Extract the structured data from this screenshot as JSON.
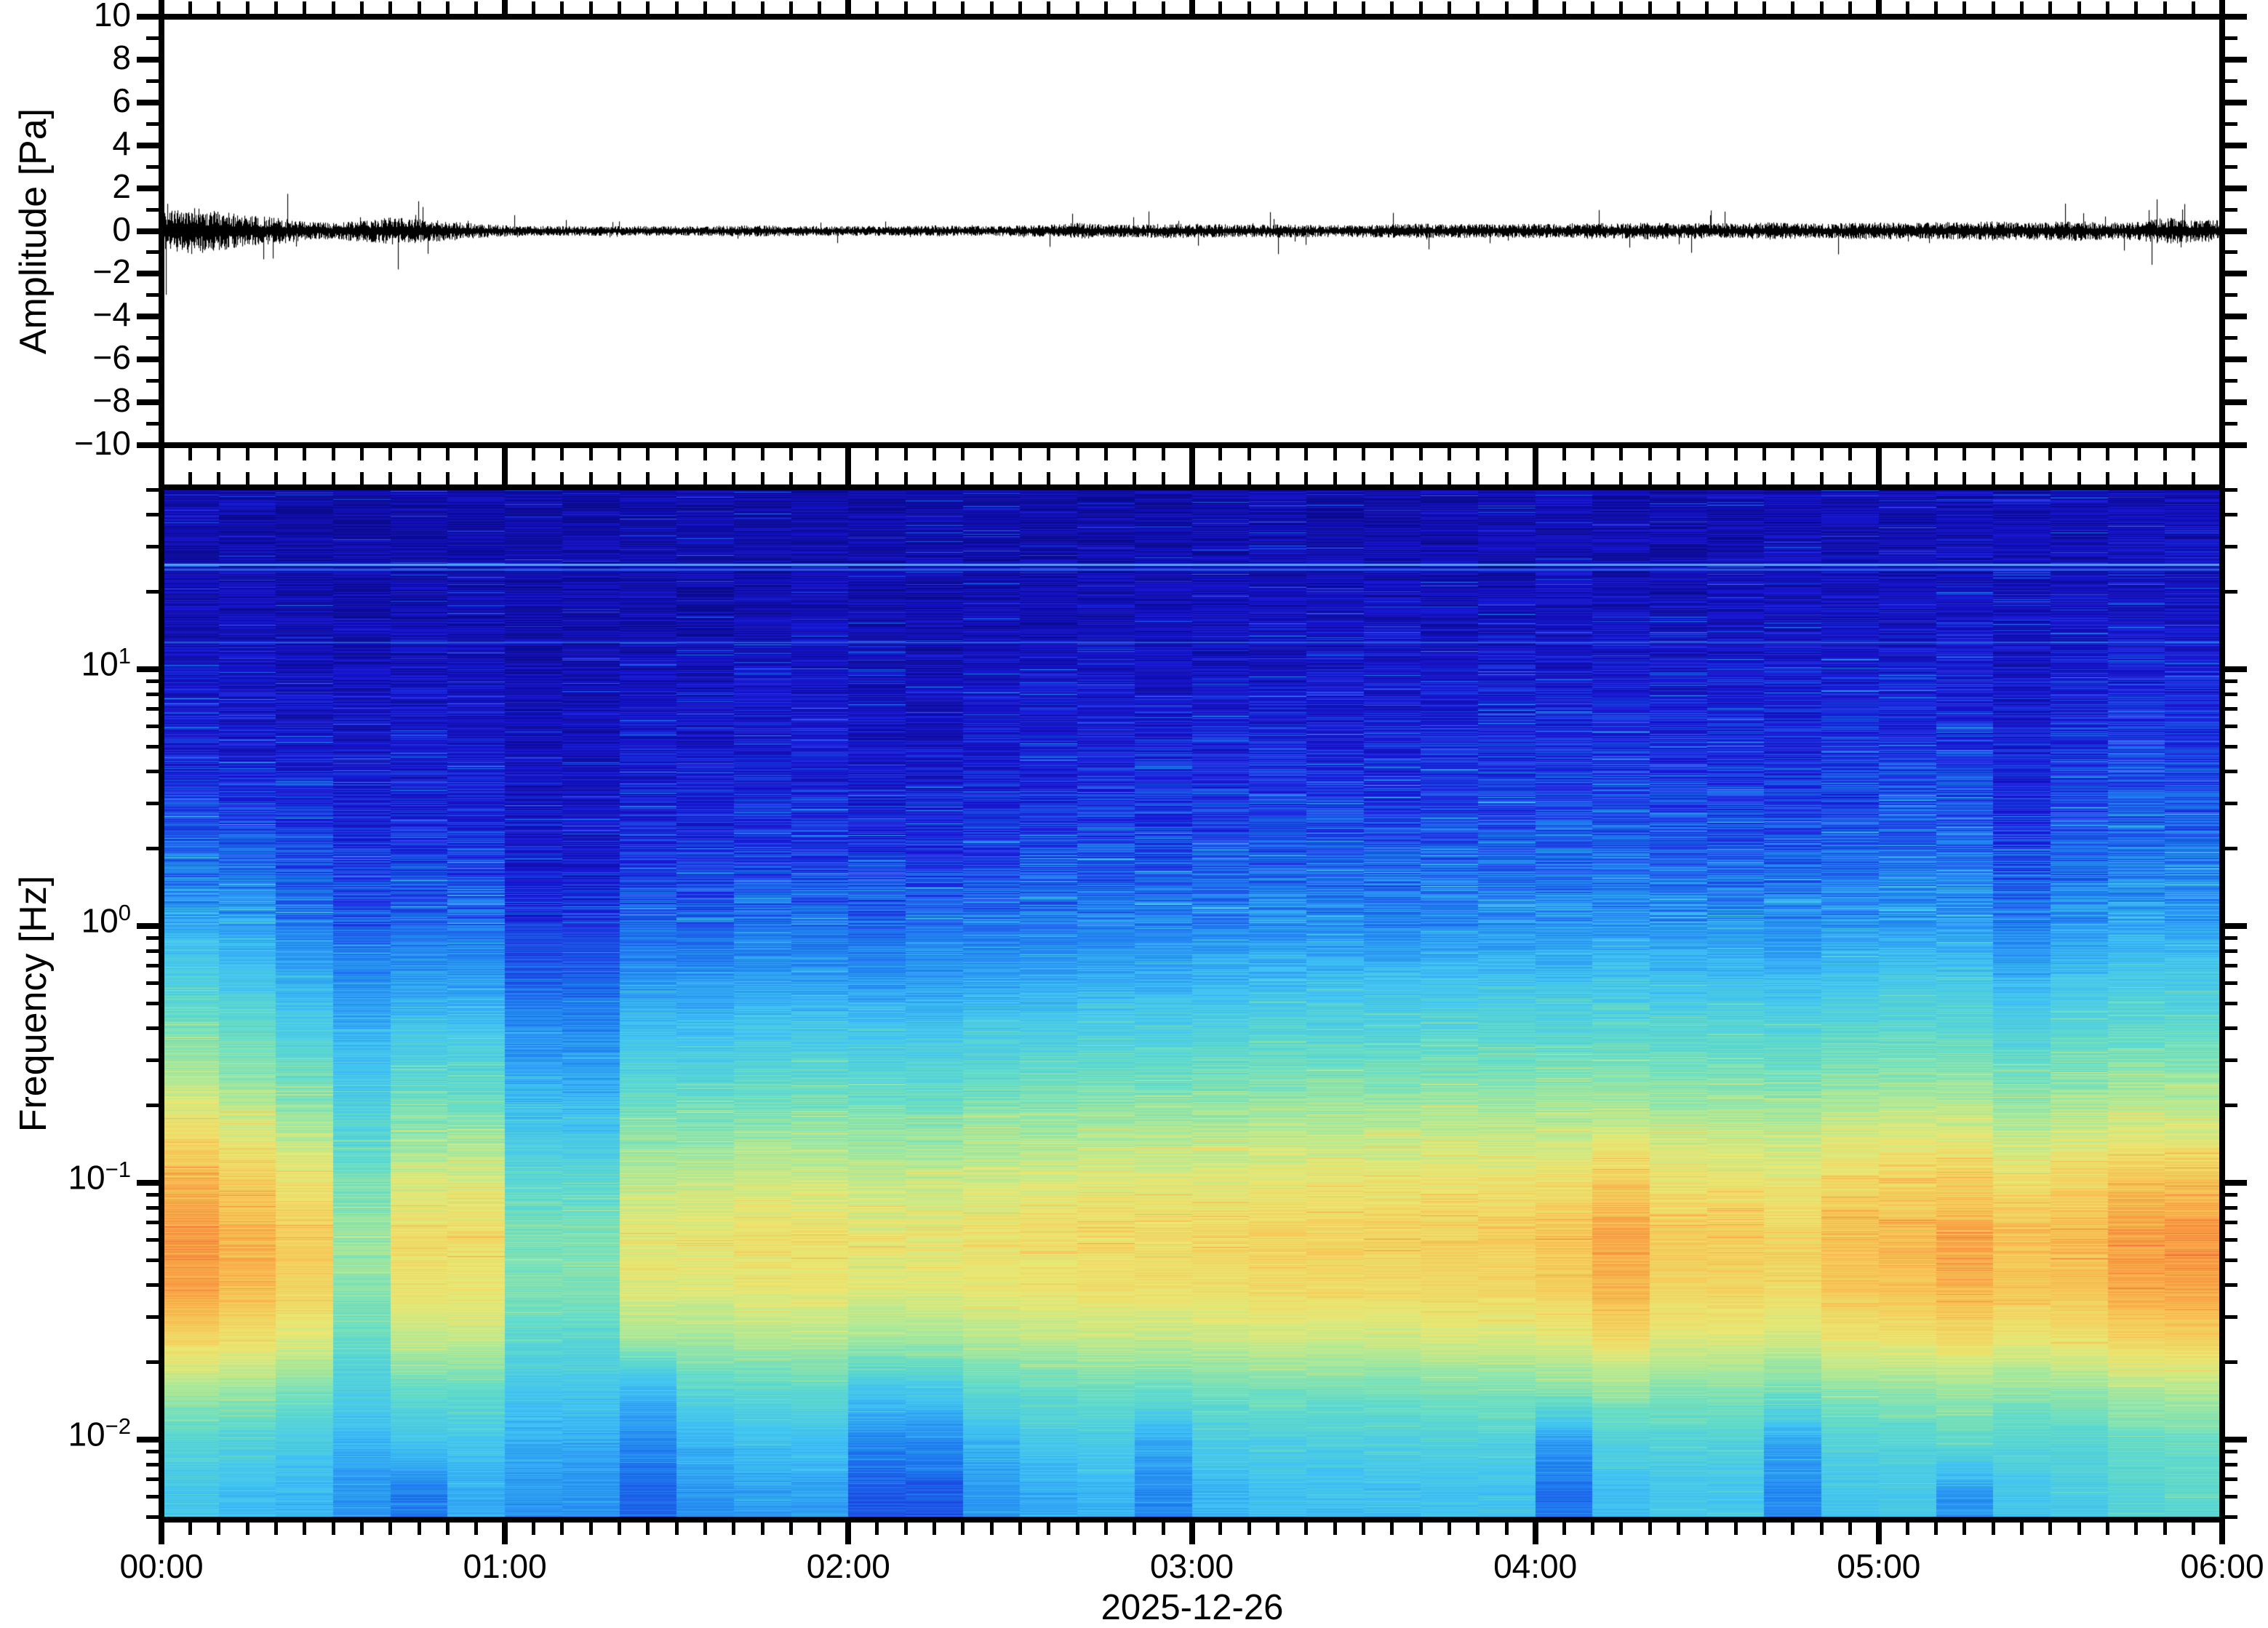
{
  "figure": {
    "background": "#ffffff",
    "axis_color": "#000000",
    "date_label": "2025-12-26"
  },
  "chart_data": [
    {
      "type": "line",
      "name": "pressure-waveform",
      "title": "",
      "ylabel": "Amplitude [Pa]",
      "ylim": [
        -10,
        10
      ],
      "ytick_values": [
        10,
        8,
        6,
        4,
        2,
        0,
        -2,
        -4,
        -6,
        -8,
        -10
      ],
      "ytick_labels": [
        "10",
        "8",
        "6",
        "4",
        "2",
        "0",
        "−2",
        "−4",
        "−6",
        "−8",
        "−10"
      ],
      "ytick_minor_step": 1,
      "x_range": [
        "00:00",
        "06:00"
      ],
      "x_total_minutes": 360,
      "x_minor_tick_minutes": 5,
      "x_major_tick_minutes": 60,
      "line_color": "#000000",
      "description": "near-zero atmospheric pressure trace, strongest noise bursts 00:00-00:55, slightly elevated after 04:30",
      "envelope_pa_5min": [
        0.3,
        0.38,
        0.32,
        0.25,
        0.22,
        0.15,
        0.13,
        0.18,
        0.22,
        0.19,
        0.16,
        0.12,
        0.09,
        0.08,
        0.08,
        0.08,
        0.08,
        0.08,
        0.08,
        0.08,
        0.09,
        0.09,
        0.08,
        0.08,
        0.08,
        0.08,
        0.08,
        0.09,
        0.08,
        0.08,
        0.09,
        0.1,
        0.13,
        0.11,
        0.1,
        0.12,
        0.12,
        0.11,
        0.1,
        0.11,
        0.1,
        0.1,
        0.1,
        0.11,
        0.12,
        0.11,
        0.12,
        0.11,
        0.12,
        0.11,
        0.13,
        0.12,
        0.14,
        0.12,
        0.13,
        0.12,
        0.14,
        0.13,
        0.12,
        0.13,
        0.14,
        0.13,
        0.15,
        0.14,
        0.16,
        0.14,
        0.15,
        0.16,
        0.14,
        0.15,
        0.22,
        0.18
      ],
      "seed": 20251226
    },
    {
      "type": "heatmap",
      "name": "infrasound-spectrogram",
      "ylabel": "Frequency [Hz]",
      "xlabel": "2025-12-26",
      "xtick_labels": [
        "00:00",
        "01:00",
        "02:00",
        "03:00",
        "04:00",
        "05:00",
        "06:00"
      ],
      "xtick_hours": [
        0,
        1,
        2,
        3,
        4,
        5,
        6
      ],
      "ytick_decades": [
        1,
        0,
        -1,
        -2
      ],
      "ytick_exponent_labels": [
        "1",
        "0",
        "−1",
        "−2"
      ],
      "ytick_base": "10",
      "freq_limits_hz": [
        0.0049,
        51.1
      ],
      "row_log10_top": 1.708,
      "row_log10_bottom": -2.312,
      "time_total_minutes": 360,
      "column_minutes": 10,
      "legend": "none",
      "grid": "off",
      "spectral_lines": [
        {
          "hz": 25.5,
          "color": "#4fb0f5",
          "alpha": 0.95,
          "px": 3
        },
        {
          "hz": 24.4,
          "color": "#2e62e8",
          "alpha": 0.9,
          "px": 3
        },
        {
          "hz": 12.7,
          "color": "#2e7bea",
          "alpha": 0.75,
          "px": 2
        }
      ],
      "colormap_stops": [
        [
          0.0,
          "#0a0a8e"
        ],
        [
          0.13,
          "#1a17d8"
        ],
        [
          0.28,
          "#1f7ef0"
        ],
        [
          0.4,
          "#3fc2f4"
        ],
        [
          0.52,
          "#63dcc8"
        ],
        [
          0.62,
          "#a6e89c"
        ],
        [
          0.72,
          "#eae873"
        ],
        [
          0.82,
          "#f7c656"
        ],
        [
          0.91,
          "#f79540"
        ],
        [
          1.0,
          "#ef5f3c"
        ]
      ],
      "noise_texture": {
        "amp_high_freq": 7.5,
        "amp_mid_freq": 4.5,
        "amp_low_freq": 3.2,
        "streak_prob": 0.05
      },
      "seed": 777,
      "values_pct": [
        [
          4,
          4,
          3,
          3,
          4,
          4,
          3,
          3,
          4,
          4,
          4,
          4,
          4,
          4,
          4,
          4,
          4,
          4,
          4,
          5,
          5,
          5,
          5,
          5,
          6,
          6,
          5,
          5,
          6,
          6,
          6,
          7,
          6,
          6,
          7,
          7
        ],
        [
          5,
          5,
          4,
          4,
          5,
          5,
          4,
          4,
          5,
          5,
          5,
          5,
          5,
          5,
          5,
          5,
          5,
          5,
          6,
          6,
          6,
          6,
          6,
          6,
          7,
          7,
          6,
          6,
          7,
          7,
          7,
          8,
          7,
          7,
          8,
          8
        ],
        [
          7,
          7,
          6,
          5,
          6,
          6,
          5,
          5,
          6,
          6,
          7,
          7,
          6,
          6,
          7,
          7,
          7,
          7,
          8,
          8,
          8,
          8,
          8,
          8,
          9,
          9,
          8,
          8,
          9,
          9,
          9,
          10,
          8,
          9,
          10,
          10
        ],
        [
          10,
          9,
          8,
          7,
          8,
          8,
          6,
          6,
          8,
          8,
          9,
          9,
          7,
          7,
          8,
          9,
          9,
          9,
          10,
          10,
          10,
          10,
          10,
          11,
          11,
          12,
          11,
          11,
          12,
          12,
          12,
          13,
          10,
          12,
          13,
          13
        ],
        [
          12,
          11,
          10,
          9,
          10,
          10,
          7,
          7,
          10,
          10,
          11,
          11,
          9,
          9,
          11,
          11,
          12,
          12,
          13,
          13,
          13,
          13,
          14,
          14,
          14,
          15,
          14,
          14,
          13,
          15,
          15,
          16,
          12,
          15,
          17,
          17
        ],
        [
          14,
          13,
          13,
          11,
          12,
          12,
          8,
          8,
          12,
          12,
          13,
          13,
          11,
          11,
          13,
          14,
          15,
          15,
          16,
          16,
          16,
          16,
          17,
          17,
          17,
          18,
          17,
          17,
          16,
          18,
          19,
          19,
          14,
          18,
          20,
          20
        ],
        [
          22,
          20,
          17,
          14,
          15,
          15,
          10,
          10,
          15,
          15,
          16,
          16,
          14,
          14,
          16,
          17,
          18,
          18,
          19,
          20,
          20,
          20,
          21,
          21,
          21,
          22,
          21,
          21,
          20,
          22,
          23,
          23,
          17,
          22,
          24,
          24
        ],
        [
          28,
          27,
          22,
          19,
          20,
          20,
          13,
          13,
          19,
          19,
          20,
          20,
          19,
          19,
          21,
          22,
          23,
          23,
          24,
          25,
          25,
          25,
          26,
          26,
          26,
          27,
          26,
          26,
          25,
          27,
          28,
          28,
          22,
          27,
          29,
          29
        ],
        [
          36,
          34,
          28,
          24,
          26,
          26,
          17,
          17,
          25,
          25,
          26,
          26,
          25,
          26,
          27,
          28,
          29,
          29,
          30,
          31,
          31,
          31,
          32,
          32,
          32,
          33,
          32,
          32,
          31,
          33,
          34,
          34,
          29,
          33,
          35,
          35
        ],
        [
          45,
          42,
          36,
          31,
          33,
          33,
          24,
          24,
          32,
          32,
          33,
          33,
          32,
          33,
          34,
          35,
          36,
          36,
          38,
          39,
          39,
          39,
          40,
          40,
          40,
          41,
          40,
          40,
          39,
          41,
          42,
          42,
          37,
          41,
          43,
          43
        ],
        [
          55,
          51,
          45,
          36,
          41,
          41,
          30,
          30,
          40,
          40,
          42,
          42,
          41,
          41,
          43,
          44,
          45,
          45,
          46,
          47,
          47,
          47,
          48,
          48,
          48,
          49,
          48,
          48,
          47,
          49,
          50,
          50,
          46,
          49,
          51,
          51
        ],
        [
          65,
          60,
          54,
          42,
          50,
          50,
          36,
          36,
          49,
          49,
          51,
          51,
          50,
          50,
          52,
          53,
          54,
          54,
          55,
          56,
          56,
          56,
          57,
          57,
          57,
          58,
          57,
          57,
          56,
          58,
          59,
          59,
          55,
          58,
          60,
          60
        ],
        [
          75,
          70,
          64,
          48,
          60,
          60,
          42,
          42,
          58,
          58,
          60,
          60,
          59,
          59,
          61,
          62,
          63,
          63,
          64,
          65,
          65,
          65,
          66,
          66,
          66,
          68,
          66,
          66,
          65,
          68,
          69,
          69,
          65,
          68,
          70,
          70
        ],
        [
          85,
          80,
          74,
          55,
          69,
          69,
          50,
          50,
          66,
          66,
          68,
          68,
          67,
          67,
          69,
          70,
          71,
          71,
          72,
          73,
          73,
          73,
          74,
          74,
          75,
          80,
          74,
          74,
          73,
          77,
          78,
          80,
          76,
          78,
          82,
          82
        ],
        [
          90,
          86,
          80,
          60,
          75,
          75,
          56,
          56,
          72,
          72,
          74,
          74,
          72,
          72,
          74,
          75,
          76,
          76,
          77,
          78,
          78,
          78,
          79,
          79,
          81,
          88,
          80,
          80,
          78,
          83,
          84,
          87,
          83,
          84,
          89,
          90
        ],
        [
          88,
          84,
          78,
          58,
          73,
          73,
          56,
          56,
          70,
          70,
          72,
          72,
          70,
          70,
          72,
          73,
          74,
          74,
          75,
          76,
          76,
          76,
          77,
          77,
          79,
          85,
          78,
          78,
          76,
          81,
          82,
          85,
          81,
          82,
          87,
          88
        ],
        [
          78,
          75,
          70,
          52,
          66,
          66,
          50,
          50,
          62,
          62,
          64,
          64,
          62,
          62,
          64,
          65,
          66,
          66,
          67,
          68,
          68,
          68,
          69,
          69,
          71,
          76,
          70,
          70,
          68,
          73,
          74,
          76,
          73,
          74,
          78,
          79
        ],
        [
          62,
          60,
          56,
          45,
          52,
          52,
          42,
          42,
          38,
          48,
          50,
          50,
          42,
          42,
          50,
          52,
          53,
          53,
          54,
          55,
          55,
          55,
          56,
          56,
          57,
          60,
          57,
          57,
          54,
          58,
          59,
          61,
          58,
          59,
          63,
          64
        ],
        [
          48,
          46,
          44,
          38,
          42,
          42,
          36,
          36,
          30,
          38,
          40,
          40,
          30,
          30,
          38,
          42,
          44,
          35,
          44,
          45,
          45,
          45,
          46,
          46,
          33,
          46,
          47,
          47,
          35,
          47,
          48,
          50,
          48,
          49,
          52,
          53
        ],
        [
          42,
          40,
          38,
          32,
          28,
          36,
          32,
          32,
          25,
          32,
          34,
          34,
          22,
          22,
          32,
          36,
          38,
          30,
          38,
          40,
          40,
          40,
          41,
          41,
          26,
          40,
          42,
          42,
          30,
          42,
          43,
          32,
          42,
          44,
          48,
          50
        ]
      ]
    }
  ]
}
